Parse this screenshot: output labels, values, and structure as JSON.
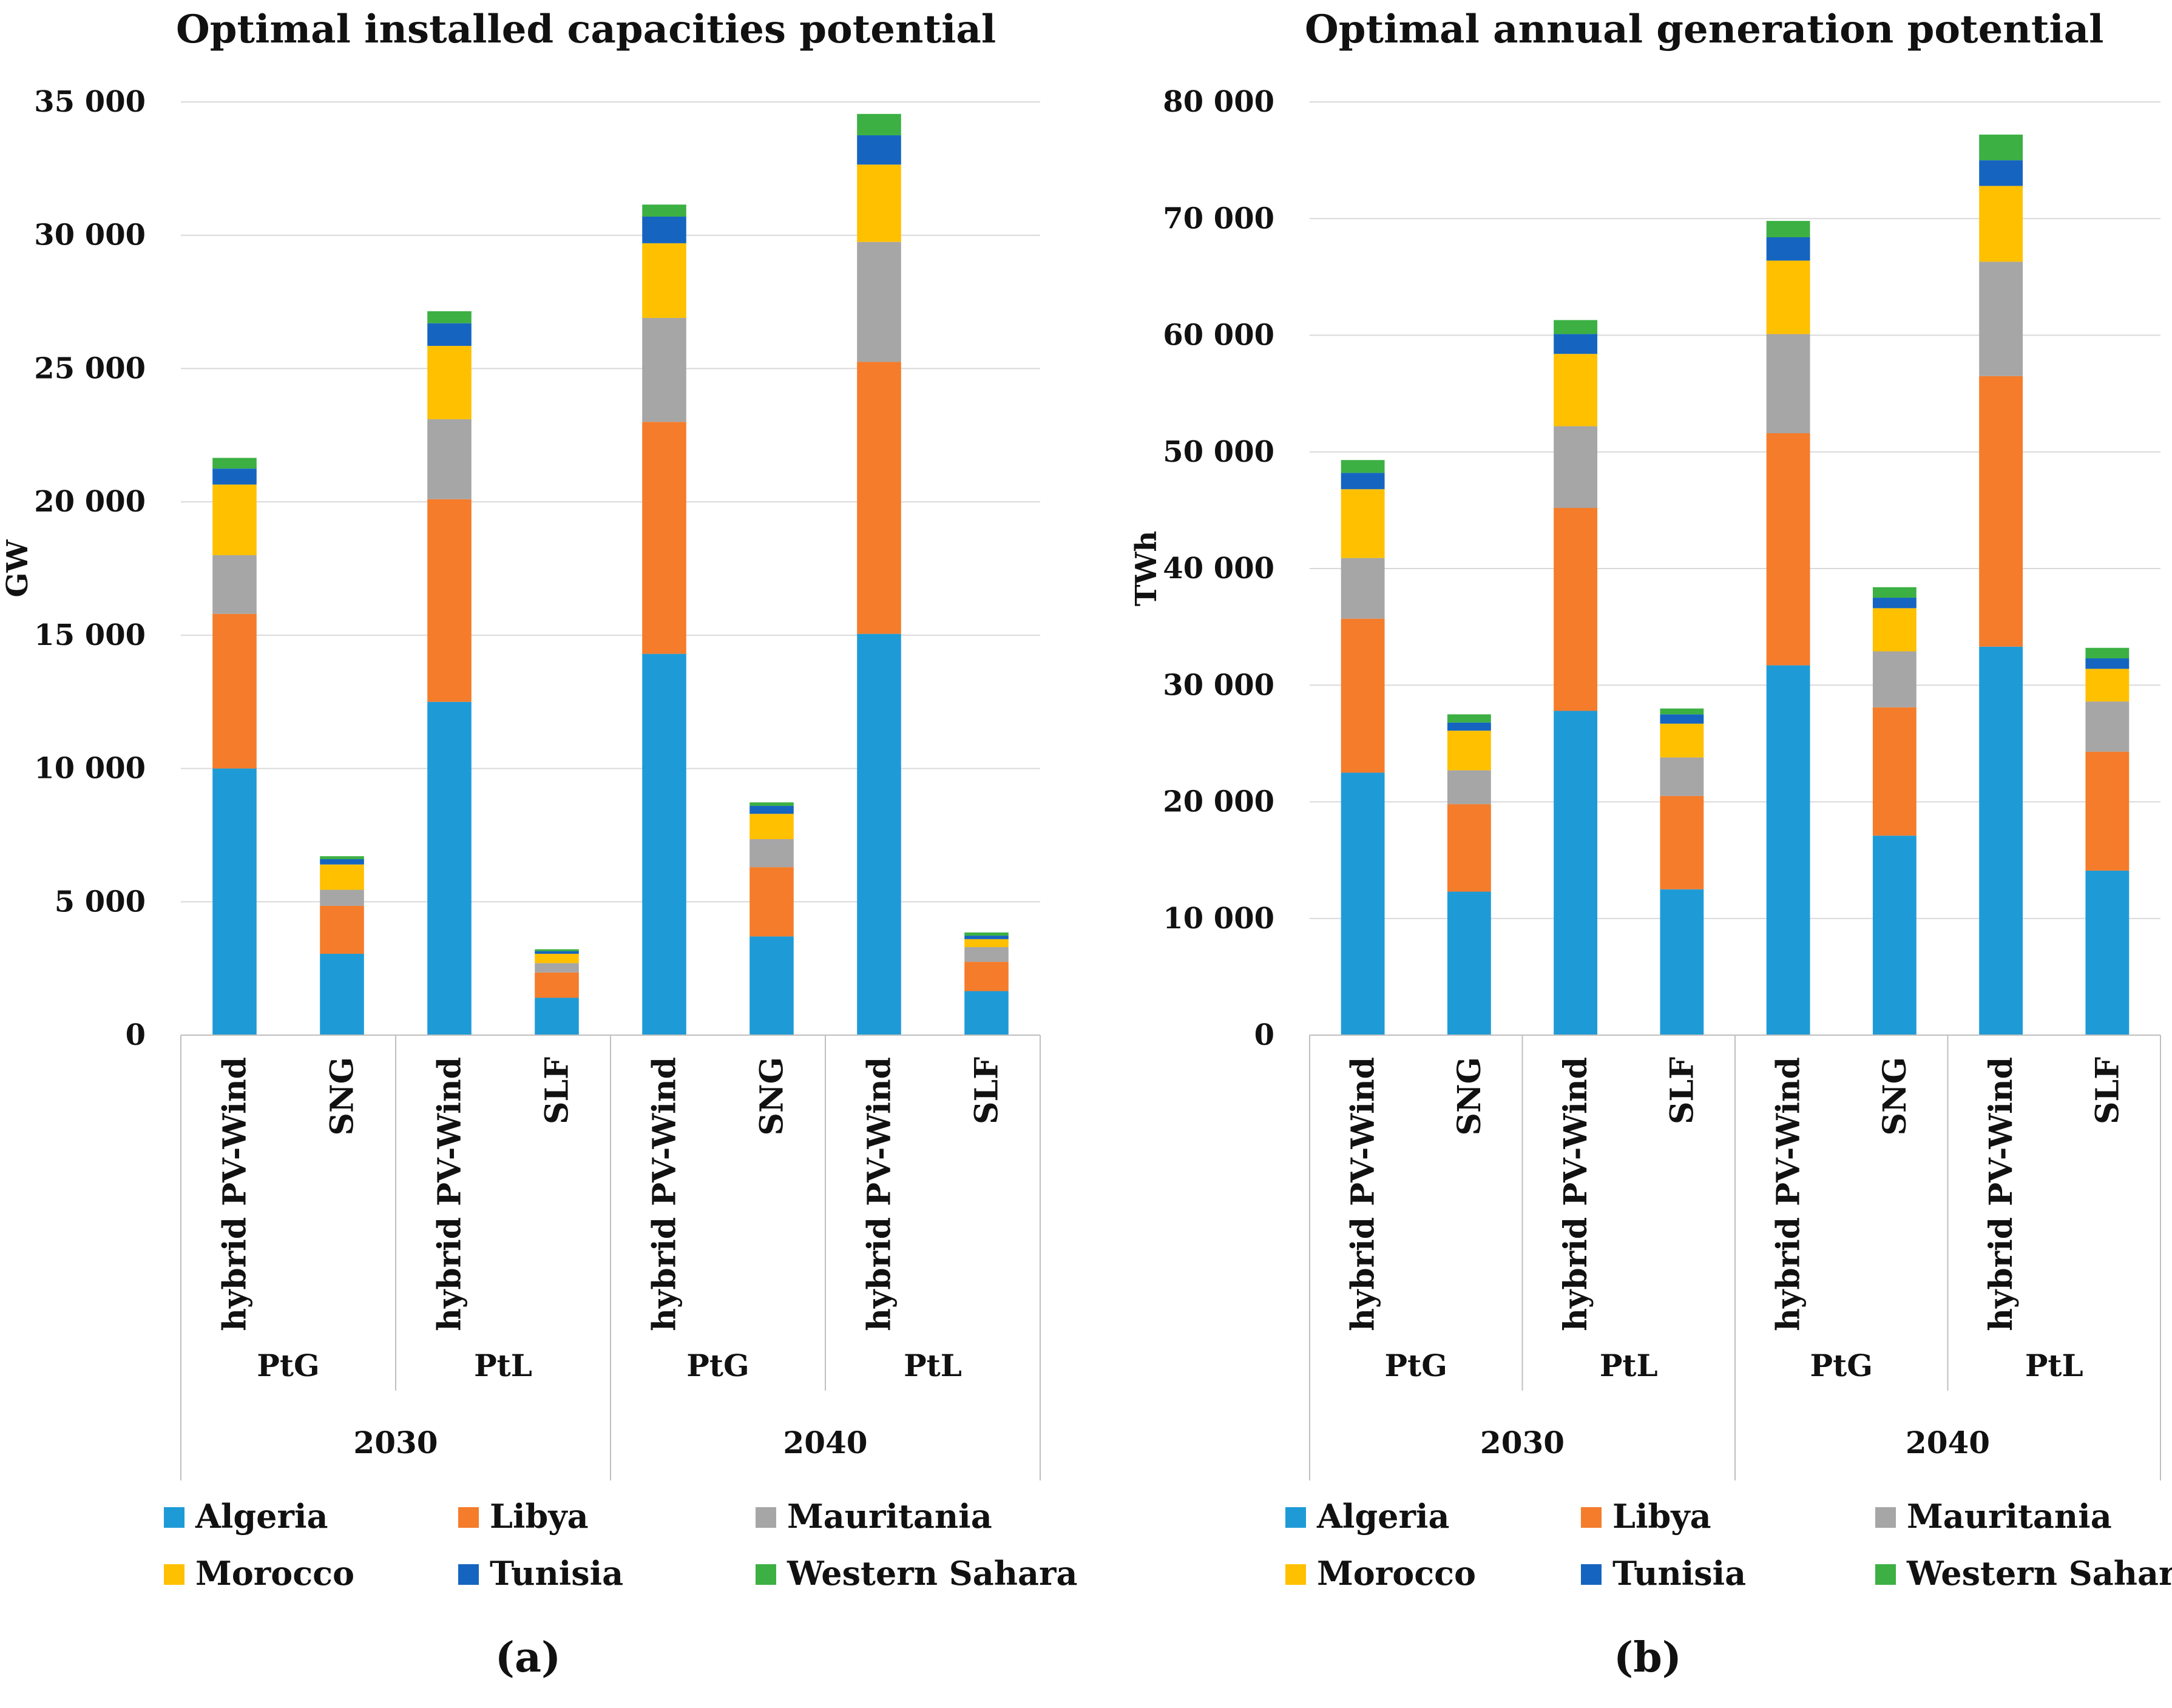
{
  "colors": {
    "Algeria": "#1e9bd7",
    "Libya": "#f47c2b",
    "Mauritania": "#a6a6a6",
    "Morocco": "#ffc000",
    "Tunisia": "#1565c0",
    "Western Sahara": "#3cb043"
  },
  "chart_data": [
    {
      "panel": "(a)",
      "type": "bar",
      "stacked": true,
      "title": "Optimal installed  capacities potential",
      "ylabel": "GW",
      "ylim": [
        0,
        35000
      ],
      "yticks": [
        "0",
        "5 000",
        "10 000",
        "15 000",
        "20 000",
        "25 000",
        "30 000",
        "35 000"
      ],
      "categories": [
        "hybrid PV-Wind",
        "SNG",
        "hybrid PV-Wind",
        "SLF",
        "hybrid PV-Wind",
        "SNG",
        "hybrid PV-Wind",
        "SLF"
      ],
      "groups": [
        "PtG",
        "PtL",
        "PtG",
        "PtL"
      ],
      "years": [
        "2030",
        "2040"
      ],
      "legend": [
        "Algeria",
        "Libya",
        "Mauritania",
        "Morocco",
        "Tunisia",
        "Western Sahara"
      ],
      "series": [
        {
          "name": "Algeria",
          "values": [
            10000,
            3050,
            12500,
            1400,
            14300,
            3700,
            15050,
            1650
          ]
        },
        {
          "name": "Libya",
          "values": [
            5800,
            1800,
            7600,
            950,
            8700,
            2600,
            10200,
            1100
          ]
        },
        {
          "name": "Mauritania",
          "values": [
            2200,
            600,
            3000,
            350,
            3900,
            1050,
            4500,
            550
          ]
        },
        {
          "name": "Morocco",
          "values": [
            2650,
            950,
            2750,
            350,
            2800,
            950,
            2900,
            300
          ]
        },
        {
          "name": "Tunisia",
          "values": [
            600,
            200,
            850,
            100,
            1000,
            300,
            1100,
            130
          ]
        },
        {
          "name": "Western Sahara",
          "values": [
            400,
            110,
            450,
            70,
            450,
            130,
            800,
            120
          ]
        }
      ]
    },
    {
      "panel": "(b)",
      "type": "bar",
      "stacked": true,
      "title": "Optimal annual generation potential",
      "ylabel": "TWh",
      "ylim": [
        0,
        80000
      ],
      "yticks": [
        "0",
        "10 000",
        "20 000",
        "30 000",
        "40 000",
        "50 000",
        "60 000",
        "70 000",
        "80 000"
      ],
      "categories": [
        "hybrid PV-Wind",
        "SNG",
        "hybrid PV-Wind",
        "SLF",
        "hybrid PV-Wind",
        "SNG",
        "hybrid PV-Wind",
        "SLF"
      ],
      "groups": [
        "PtG",
        "PtL",
        "PtG",
        "PtL"
      ],
      "years": [
        "2030",
        "2040"
      ],
      "legend": [
        "Algeria",
        "Libya",
        "Mauritania",
        "Morocco",
        "Tunisia",
        "Western Sahara"
      ],
      "series": [
        {
          "name": "Algeria",
          "values": [
            22500,
            12300,
            27800,
            12500,
            31700,
            17100,
            33300,
            14100
          ]
        },
        {
          "name": "Libya",
          "values": [
            13200,
            7500,
            17400,
            8000,
            19900,
            11000,
            23200,
            10200
          ]
        },
        {
          "name": "Mauritania",
          "values": [
            5200,
            2900,
            7000,
            3300,
            8500,
            4800,
            9800,
            4300
          ]
        },
        {
          "name": "Morocco",
          "values": [
            5900,
            3400,
            6200,
            2900,
            6300,
            3700,
            6500,
            2800
          ]
        },
        {
          "name": "Tunisia",
          "values": [
            1400,
            700,
            1700,
            800,
            2000,
            900,
            2200,
            900
          ]
        },
        {
          "name": "Western Sahara",
          "values": [
            1100,
            700,
            1200,
            500,
            1400,
            900,
            2200,
            900
          ]
        }
      ]
    }
  ]
}
